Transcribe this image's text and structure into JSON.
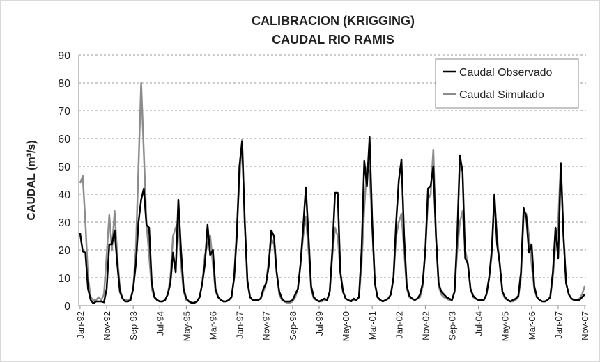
{
  "chart_data": {
    "type": "line",
    "title": "CALIBRACION (KRIGGING)",
    "subtitle": "CAUDAL RIO RAMIS",
    "y_label": "CAUDAL (m³/s)",
    "ylim": [
      0,
      90
    ],
    "yticks": [
      0,
      10,
      20,
      30,
      40,
      50,
      60,
      70,
      80,
      90
    ],
    "grid": true,
    "legend": "top-right",
    "categories": [
      "Jan-92",
      null,
      null,
      null,
      null,
      null,
      null,
      null,
      null,
      null,
      "Nov-92",
      null,
      null,
      null,
      null,
      null,
      null,
      null,
      null,
      null,
      "Sep-93",
      null,
      null,
      null,
      null,
      null,
      null,
      null,
      null,
      null,
      "Jul-94",
      null,
      null,
      null,
      null,
      null,
      null,
      null,
      null,
      null,
      "May-95",
      null,
      null,
      null,
      null,
      null,
      null,
      null,
      null,
      null,
      "Mar-96",
      null,
      null,
      null,
      null,
      null,
      null,
      null,
      null,
      null,
      "Jan-97",
      null,
      null,
      null,
      null,
      null,
      null,
      null,
      null,
      null,
      "Nov-97",
      null,
      null,
      null,
      null,
      null,
      null,
      null,
      null,
      null,
      "Sep-98",
      null,
      null,
      null,
      null,
      null,
      null,
      null,
      null,
      null,
      "Jul-99",
      null,
      null,
      null,
      null,
      null,
      null,
      null,
      null,
      null,
      "May-00",
      null,
      null,
      null,
      null,
      null,
      null,
      null,
      null,
      null,
      "Mar-01",
      null,
      null,
      null,
      null,
      null,
      null,
      null,
      null,
      null,
      "Jan-02",
      null,
      null,
      null,
      null,
      null,
      null,
      null,
      null,
      null,
      "Nov-02",
      null,
      null,
      null,
      null,
      null,
      null,
      null,
      null,
      null,
      "Sep-03",
      null,
      null,
      null,
      null,
      null,
      null,
      null,
      null,
      null,
      "Jul-04",
      null,
      null,
      null,
      null,
      null,
      null,
      null,
      null,
      null,
      "May-05",
      null,
      null,
      null,
      null,
      null,
      null,
      null,
      null,
      null,
      "Mar-06",
      null,
      null,
      null,
      null,
      null,
      null,
      null,
      null,
      null,
      "Jan-07",
      null,
      null,
      null,
      null,
      null,
      null,
      null,
      null,
      null,
      "Nov-07"
    ],
    "series": [
      {
        "name": "Caudal Observado",
        "color": "#000000",
        "values": [
          26,
          19.5,
          19,
          6,
          2,
          0.8,
          1.5,
          1.5,
          1.5,
          1.2,
          6,
          22,
          22,
          27,
          15,
          5,
          2.5,
          1.5,
          1.5,
          2,
          6,
          15,
          30,
          38,
          42,
          29,
          28,
          8,
          3,
          2,
          1.5,
          1.5,
          2,
          4,
          8,
          19,
          12,
          38,
          20,
          6,
          2.5,
          1.5,
          1,
          1,
          1.5,
          3,
          8,
          15,
          29,
          18,
          20,
          6,
          3,
          2,
          1.5,
          1.5,
          2,
          3,
          10,
          25,
          50,
          59,
          30,
          9,
          3,
          2,
          2,
          2,
          2.5,
          6,
          8,
          14,
          27,
          25,
          12,
          5,
          2.5,
          1.5,
          1.5,
          1.5,
          2,
          4,
          6,
          15,
          28,
          42.5,
          25,
          7,
          3,
          2,
          1.5,
          2,
          2.5,
          2,
          5,
          20,
          40.5,
          40.5,
          12,
          5,
          2.5,
          2,
          1.5,
          2.5,
          2,
          3,
          20,
          52,
          43,
          60.5,
          30,
          8,
          3,
          2,
          1.5,
          2,
          2.5,
          4,
          10,
          30,
          45,
          52.5,
          25,
          7,
          3.5,
          2.5,
          2,
          2.5,
          4,
          8,
          20,
          42,
          43,
          50,
          25,
          8,
          5,
          4,
          3,
          2.5,
          2,
          5,
          25,
          54,
          48,
          17,
          15,
          6,
          3.5,
          2.5,
          2,
          2,
          2,
          4,
          10,
          20,
          40,
          22,
          15,
          5,
          3,
          2,
          1.5,
          2,
          2.5,
          3.5,
          12,
          35,
          32,
          19,
          22,
          7,
          3,
          2,
          1.5,
          1.5,
          2,
          3,
          12,
          28,
          17,
          51,
          25,
          8,
          4,
          2.5,
          2,
          2,
          2,
          3,
          4
        ]
      },
      {
        "name": "Caudal Simulado",
        "color": "#8c8c8c",
        "values": [
          44,
          46.5,
          30,
          10,
          3,
          2,
          2,
          3,
          2,
          4,
          18,
          32.5,
          20,
          34,
          18,
          6,
          2.5,
          2,
          2,
          2.5,
          6,
          20,
          50,
          80,
          55,
          30,
          18,
          6,
          3,
          2,
          1.5,
          1.5,
          2,
          4,
          10,
          25,
          28,
          30,
          15,
          5,
          2,
          1.5,
          1,
          1,
          1.5,
          3,
          8,
          18,
          22,
          25,
          15,
          5,
          3,
          2,
          1.5,
          1.5,
          2,
          3,
          10,
          28,
          45,
          59.5,
          30,
          8,
          3,
          2,
          2,
          2,
          2.5,
          5,
          8,
          16,
          24,
          22,
          12,
          4,
          2,
          1.5,
          1,
          1,
          1.5,
          3,
          6,
          15,
          25,
          32,
          20,
          6,
          2.5,
          2,
          1.5,
          1.5,
          2,
          2,
          5,
          18,
          28,
          25,
          12,
          5,
          2.5,
          2,
          1.5,
          2,
          2,
          3,
          15,
          35,
          50,
          48,
          28,
          8,
          3,
          2,
          1.5,
          2,
          2.5,
          4,
          10,
          25,
          30,
          33,
          20,
          6,
          3,
          2.5,
          2,
          2.5,
          3,
          7,
          20,
          38,
          40,
          56,
          25,
          7,
          4,
          3,
          2.5,
          2,
          2,
          5,
          20,
          30,
          34,
          20,
          15,
          6,
          3,
          2.5,
          2,
          2,
          2,
          4,
          10,
          18,
          38,
          25,
          15,
          5,
          2.5,
          2,
          1.5,
          1.5,
          2,
          3,
          10,
          32,
          33,
          25,
          15,
          6,
          3,
          2,
          1.5,
          1.5,
          2,
          3,
          10,
          22,
          30,
          51.5,
          25,
          8,
          4,
          2.5,
          2,
          2,
          2.5,
          4,
          7
        ]
      }
    ]
  }
}
